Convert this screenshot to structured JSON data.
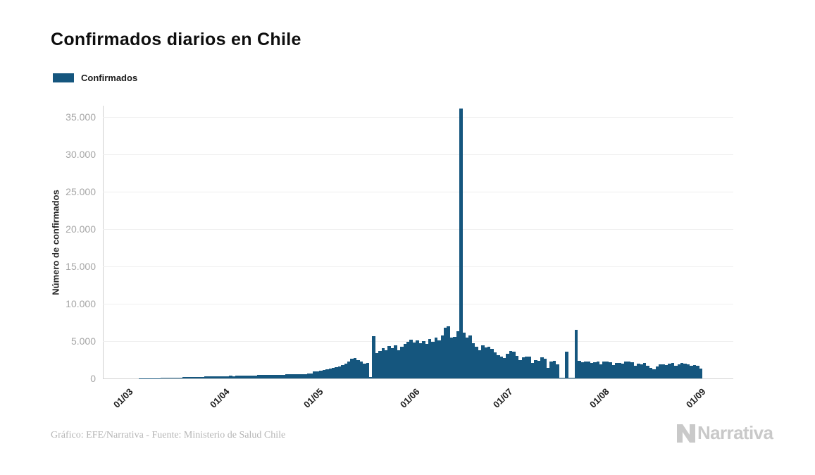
{
  "page": {
    "title": "Confirmados diarios en Chile"
  },
  "legend": {
    "label": "Confirmados",
    "color": "#15567E"
  },
  "chart_data": {
    "type": "bar",
    "title": "Confirmados diarios en Chile",
    "ylabel": "Número de confirmados",
    "series_name": "Confirmados",
    "bar_color": "#15567E",
    "frequency": "daily",
    "x_start_label": "01/03",
    "x_end_label": "01/09",
    "grid": true,
    "legend_position": "top-left",
    "ylim": [
      0,
      36500
    ],
    "y_tick_values": [
      0,
      5000,
      10000,
      15000,
      20000,
      25000,
      30000,
      35000
    ],
    "y_tick_labels": [
      "0",
      "5.000",
      "10.000",
      "15.000",
      "20.000",
      "25.000",
      "30.000",
      "35.000"
    ],
    "x_ticks": [
      {
        "label": "01/03",
        "day": 0
      },
      {
        "label": "01/04",
        "day": 31
      },
      {
        "label": "01/05",
        "day": 61
      },
      {
        "label": "01/06",
        "day": 92
      },
      {
        "label": "01/07",
        "day": 122
      },
      {
        "label": "01/08",
        "day": 153
      },
      {
        "label": "01/09",
        "day": 184
      }
    ],
    "peak_value": 36179,
    "values": [
      2,
      3,
      3,
      4,
      6,
      8,
      10,
      14,
      18,
      24,
      30,
      38,
      48,
      60,
      75,
      90,
      105,
      120,
      130,
      142,
      155,
      168,
      180,
      195,
      210,
      225,
      240,
      255,
      270,
      285,
      300,
      310,
      300,
      325,
      340,
      330,
      355,
      370,
      360,
      385,
      400,
      390,
      415,
      430,
      445,
      435,
      460,
      475,
      465,
      490,
      505,
      495,
      520,
      535,
      550,
      540,
      565,
      585,
      605,
      630,
      660,
      900,
      980,
      1060,
      1140,
      1220,
      1300,
      1400,
      1500,
      1650,
      1800,
      2000,
      2300,
      2600,
      2760,
      2500,
      2300,
      2000,
      2100,
      150,
      5700,
      3400,
      3700,
      4100,
      3800,
      4300,
      4100,
      4430,
      3770,
      4200,
      4600,
      4900,
      5200,
      4800,
      5100,
      4700,
      5000,
      4600,
      5300,
      4900,
      5500,
      5100,
      5800,
      6800,
      7000,
      5470,
      5600,
      6320,
      36179,
      6100,
      5450,
      5750,
      4740,
      4270,
      3800,
      4430,
      4150,
      4270,
      3960,
      3500,
      3100,
      2900,
      2730,
      3300,
      3680,
      3600,
      3020,
      2450,
      2830,
      2900,
      2880,
      2075,
      2500,
      2400,
      2830,
      2600,
      1420,
      2300,
      2400,
      1900,
      60,
      60,
      3600,
      60,
      60,
      6500,
      2400,
      2150,
      2300,
      2250,
      2100,
      2200,
      2300,
      1900,
      2250,
      2300,
      2150,
      1800,
      2050,
      2100,
      1950,
      2250,
      2300,
      2150,
      1700,
      2000,
      1850,
      2100,
      1700,
      1400,
      1230,
      1600,
      1850,
      1930,
      1770,
      2000,
      2060,
      1670,
      1930,
      2100,
      2000,
      1850,
      1670,
      1800,
      1670,
      1350
    ]
  },
  "footer": {
    "credit": "Gráfico: EFE/Narrativa - Fuente: Ministerio de Salud Chile"
  },
  "logo": {
    "text": "Narrativa"
  }
}
